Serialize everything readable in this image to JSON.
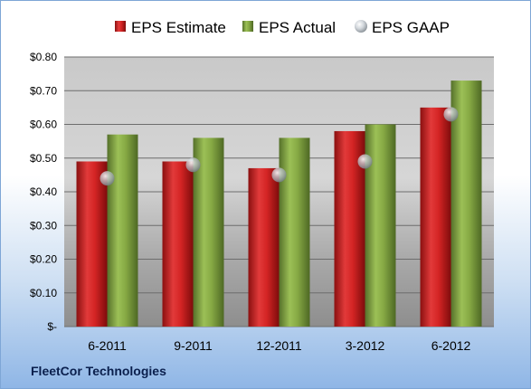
{
  "chart_data": {
    "type": "bar",
    "categories": [
      "6-2011",
      "9-2011",
      "12-2011",
      "3-2012",
      "6-2012"
    ],
    "series": [
      {
        "name": "EPS Estimate",
        "type": "bar",
        "color": "#cc1f1f",
        "values": [
          0.49,
          0.49,
          0.47,
          0.58,
          0.65
        ]
      },
      {
        "name": "EPS Actual",
        "type": "bar",
        "color": "#7a9c3a",
        "values": [
          0.57,
          0.56,
          0.56,
          0.6,
          0.73
        ]
      },
      {
        "name": "EPS GAAP",
        "type": "scatter",
        "color": "#b8bec4",
        "values": [
          0.44,
          0.48,
          0.45,
          0.49,
          0.63
        ]
      }
    ],
    "y_ticks": [
      "$-",
      "$0.10",
      "$0.20",
      "$0.30",
      "$0.40",
      "$0.50",
      "$0.60",
      "$0.70",
      "$0.80"
    ],
    "ylim": [
      0,
      0.8
    ],
    "grid": true,
    "legend_position": "top"
  },
  "footer": {
    "company": "FleetCor Technologies"
  }
}
